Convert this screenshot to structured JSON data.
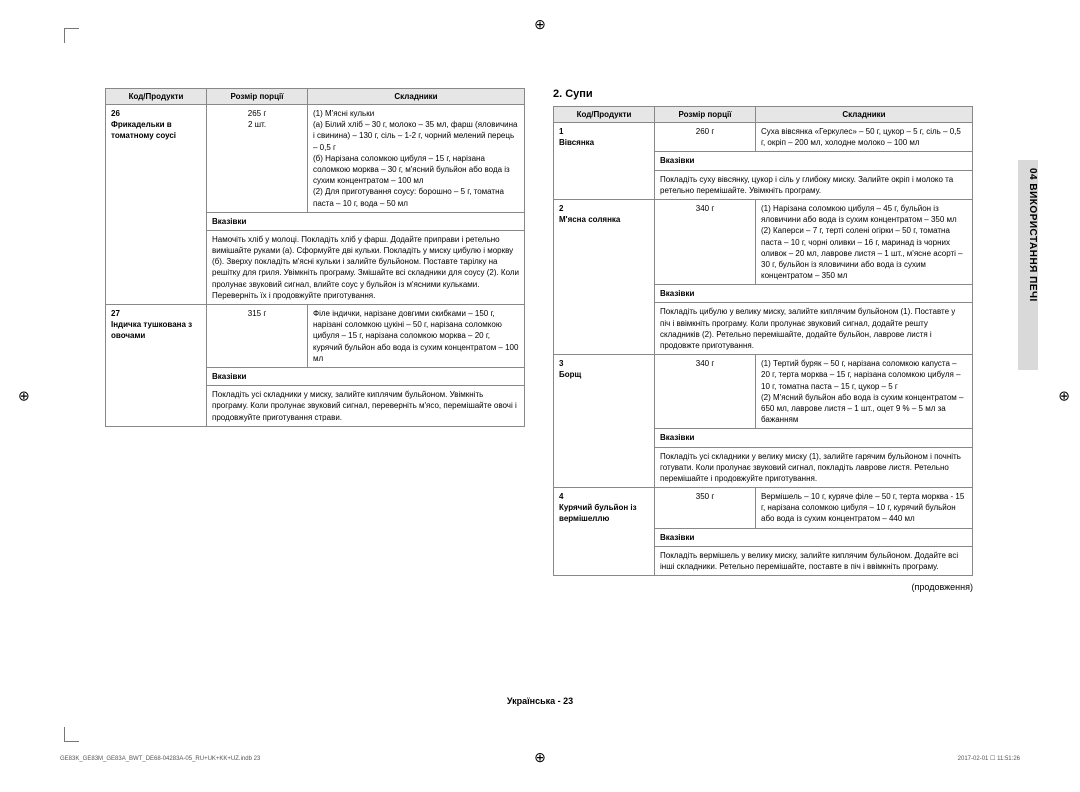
{
  "side_tab": "04  ВИКОРИСТАННЯ ПЕЧІ",
  "section2_title": "2. Супи",
  "continuation": "(продовження)",
  "page_label": "Українська - 23",
  "indb_left": "GE83K_GE83M_GE83A_BWT_DE68-04283A-05_RU+UK+KK+UZ.indb   23",
  "indb_right": "2017-02-01   ☐ 11:51:26",
  "headers": {
    "code": "Код/Продукти",
    "size": "Розмір порції",
    "ingredients": "Складники",
    "instr": "Вказівки"
  },
  "left_rows": [
    {
      "code": "26",
      "name": "Фрикадельки в томатному соусі",
      "size": "265 г\n2 шт.",
      "ingredients": "(1) М'ясні кульки\n(а) Білий хліб – 30 г, молоко – 35 мл, фарш (яловичина і свинина) – 130 г, сіль – 1-2 г, чорний мелений перець – 0,5 г\n(б) Нарізана соломкою цибуля – 15 г, нарізана соломкою морква – 30 г, м'ясний бульйон або вода із сухим концентратом – 100 мл\n(2) Для приготування соусу: борошно – 5 г, томатна паста – 10 г, вода – 50 мл",
      "instr": "Намочіть хліб у молоці. Покладіть хліб у фарш. Додайте приправи і ретельно вимішайте руками (а). Сформуйте дві кульки. Покладіть у миску цибулю і моркву (б). Зверху покладіть м'ясні кульки і залийте бульйоном. Поставте тарілку на решітку для гриля. Увімкніть програму. Змішайте всі складники для соусу (2). Коли пролунає звуковий сигнал, влийте соус у бульйон із м'ясними кульками. Переверніть їх і продовжуйте приготування."
    },
    {
      "code": "27",
      "name": "Індичка тушкована з овочами",
      "size": "315 г",
      "ingredients": "Філе індички, нарізане довгими скибками – 150 г, нарізані соломкою цукіні – 50 г, нарізана соломкою цибуля – 15 г, нарізана соломкою морква – 20 г, курячий бульйон або вода із сухим концентратом – 100 мл",
      "instr": "Покладіть усі складники у миску, залийте киплячим бульйоном. Увімкніть програму. Коли пролунає звуковий сигнал, переверніть м'ясо, перемішайте овочі і продовжуйте приготування страви."
    }
  ],
  "right_rows": [
    {
      "code": "1",
      "name": "Вівсянка",
      "size": "260 г",
      "ingredients": "Суха вівсянка «Геркулес» – 50 г, цукор – 5 г, сіль – 0,5 г, окріп – 200 мл, холодне молоко – 100 мл",
      "instr": "Покладіть суху вівсянку, цукор і сіль у глибоку миску. Залийте окріп і молоко та ретельно перемішайте. Увімкніть програму."
    },
    {
      "code": "2",
      "name": "М'ясна солянка",
      "size": "340 г",
      "ingredients": "(1) Нарізана соломкою цибуля – 45 г, бульйон із яловичини або вода із сухим концентратом – 350 мл\n(2) Каперси – 7 г, терті солені огірки – 50 г, томатна паста – 10 г, чорні оливки – 16 г, маринад із чорних оливок – 20 мл, лаврове листя – 1 шт., м'ясне асорті – 30 г, бульйон із яловичини або вода із сухим концентратом – 350 мл",
      "instr": "Покладіть цибулю у велику миску, залийте киплячим бульйоном (1). Поставте у піч і ввімкніть програму. Коли пролунає звуковий сигнал, додайте решту складників (2). Ретельно перемішайте, додайте бульйон, лаврове листя і продовжте приготування."
    },
    {
      "code": "3",
      "name": "Борщ",
      "size": "340 г",
      "ingredients": "(1) Тертий буряк – 50 г, нарізана соломкою капуста – 20 г, терта морква – 15 г, нарізана соломкою цибуля – 10 г, томатна паста – 15 г, цукор – 5 г\n(2) М'ясний бульйон або вода із сухим концентратом – 650 мл, лаврове листя – 1 шт., оцет 9 % – 5 мл за бажанням",
      "instr": "Покладіть усі складники у велику миску (1), залийте гарячим бульйоном і почніть готувати. Коли пролунає звуковий сигнал, покладіть лаврове листя. Ретельно перемішайте і продовжуйте приготування."
    },
    {
      "code": "4",
      "name": "Курячий бульйон із вермішеллю",
      "size": "350 г",
      "ingredients": "Вермішель – 10 г, куряче філе – 50 г, терта морква - 15 г, нарізана соломкою цибуля – 10 г, курячий бульйон або вода із сухим концентратом – 440 мл",
      "instr": "Покладіть вермішель у велику миску, залийте киплячим бульйоном. Додайте всі інші складники. Ретельно перемішайте, поставте в піч і ввімкніть програму."
    }
  ]
}
